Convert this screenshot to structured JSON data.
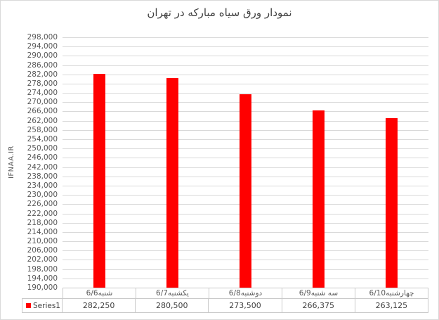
{
  "chart_data": {
    "type": "bar",
    "title": "نمودار ورق سیاه مبارکه در تهران",
    "categories": [
      "شنبه6/6",
      "یکشنبه6/7",
      "دوشنبه6/8",
      "سه شنبه6/9",
      "چهارشنبه6/10"
    ],
    "series": [
      {
        "name": "Series1",
        "values": [
          282250,
          280500,
          273500,
          266375,
          263125
        ]
      }
    ],
    "value_labels": [
      "282,250",
      "280,500",
      "273,500",
      "266,375",
      "263,125"
    ],
    "xlabel": "",
    "ylabel": "IFNAA.IR",
    "ylim": [
      190000,
      298000
    ],
    "ytick_step": 4000,
    "grid": true,
    "legend_position": "data-table-left",
    "bar_color": "#ff0000"
  },
  "colors": {
    "bar": "#ff0000",
    "gridline": "#d9d9d9",
    "table_border": "#c9c9c9",
    "tick_text": "#595959",
    "title_text": "#3f3f3f",
    "chart_border": "#d9d9d9"
  }
}
